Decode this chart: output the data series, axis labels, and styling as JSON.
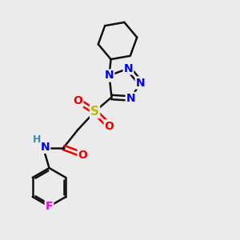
{
  "background_color": "#ebebeb",
  "atom_colors": {
    "C": "#000000",
    "N": "#0000ee",
    "O": "#ee0000",
    "S": "#bbbb00",
    "F": "#ee00ee",
    "H": "#4488aa",
    "NH": "#0000ee"
  },
  "bond_color": "#111111",
  "bond_width": 1.8,
  "font_size_atom": 10,
  "xlim": [
    0,
    10
  ],
  "ylim": [
    0,
    10
  ]
}
